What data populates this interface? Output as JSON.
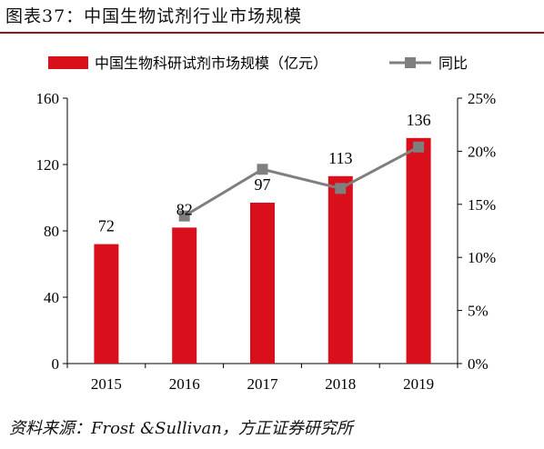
{
  "figure": {
    "title": "图表37：中国生物试剂行业市场规模",
    "source": "资料来源：Frost &Sullivan，方正证券研究所"
  },
  "colors": {
    "bar": "#d9101c",
    "line": "#7f7f7f",
    "rule": "#8c1a1a",
    "axis": "#000000"
  },
  "chart_data": {
    "type": "bar",
    "categories": [
      "2015",
      "2016",
      "2017",
      "2018",
      "2019"
    ],
    "series": [
      {
        "name": "中国生物科研试剂市场规模（亿元）",
        "type": "bar",
        "axis": "left",
        "values": [
          72,
          82,
          97,
          113,
          136
        ],
        "data_labels": [
          "72",
          "82",
          "97",
          "113",
          "136"
        ]
      },
      {
        "name": "同比",
        "type": "line",
        "axis": "right",
        "marker": "square",
        "values": [
          null,
          13.9,
          18.3,
          16.5,
          20.4
        ]
      }
    ],
    "y_left": {
      "ylim": [
        0,
        160
      ],
      "ticks": [
        "0",
        "40",
        "80",
        "120",
        "160"
      ],
      "values": [
        0,
        40,
        80,
        120,
        160
      ]
    },
    "y_right": {
      "ylim": [
        0,
        25
      ],
      "ticks": [
        "0%",
        "5%",
        "10%",
        "15%",
        "20%",
        "25%"
      ],
      "values": [
        0,
        5,
        10,
        15,
        20,
        25
      ]
    },
    "legend": {
      "position": "top"
    },
    "grid": false
  }
}
